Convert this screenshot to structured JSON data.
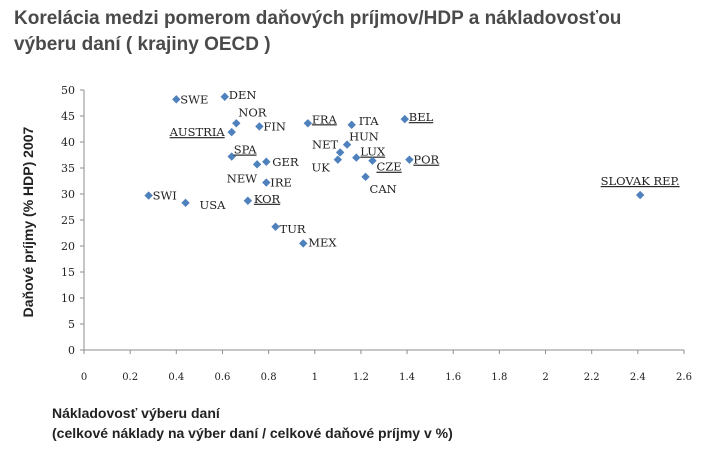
{
  "title_line1": "Korelácia medzi pomerom daňových príjmov/HDP a nákladovosťou",
  "title_line2": "výberu daní ( krajiny OECD )",
  "chart_data": {
    "type": "scatter",
    "xlabel_line1": "Nákladovosť výberu daní",
    "xlabel_line2": "(celkové náklady na výber daní / celkové daňové príjmy v %)",
    "ylabel": "Daňové príjmy (% HDP) 2007",
    "xlim": [
      0,
      2.6
    ],
    "ylim": [
      0,
      50
    ],
    "x_ticks": [
      "0",
      "0.2",
      "0.4",
      "0.6",
      "0.8",
      "1",
      "1.2",
      "1.4",
      "1.6",
      "1.8",
      "2",
      "2.2",
      "2.4",
      "2.6"
    ],
    "y_ticks": [
      "0",
      "5",
      "10",
      "15",
      "20",
      "25",
      "30",
      "35",
      "40",
      "45",
      "50"
    ],
    "grid": false,
    "legend": "none",
    "marker_color": "#4f81bd",
    "points": [
      {
        "label": "SWE",
        "x": 0.4,
        "y": 48.2
      },
      {
        "label": "DEN",
        "x": 0.61,
        "y": 48.7
      },
      {
        "label": "NOR",
        "x": 0.66,
        "y": 43.6
      },
      {
        "label": "AUSTRIA",
        "x": 0.64,
        "y": 41.9
      },
      {
        "label": "FIN",
        "x": 0.76,
        "y": 43.0
      },
      {
        "label": "FRA",
        "x": 0.97,
        "y": 43.6
      },
      {
        "label": "ITA",
        "x": 1.16,
        "y": 43.3
      },
      {
        "label": "BEL",
        "x": 1.39,
        "y": 44.4
      },
      {
        "label": "HUN",
        "x": 1.14,
        "y": 39.5
      },
      {
        "label": "NET",
        "x": 1.11,
        "y": 38.0
      },
      {
        "label": "LUX",
        "x": 1.18,
        "y": 37.0
      },
      {
        "label": "UK",
        "x": 1.1,
        "y": 36.6
      },
      {
        "label": "CZE",
        "x": 1.25,
        "y": 36.4
      },
      {
        "label": "POR",
        "x": 1.41,
        "y": 36.6
      },
      {
        "label": "CAN",
        "x": 1.22,
        "y": 33.3
      },
      {
        "label": "SPA",
        "x": 0.64,
        "y": 37.2
      },
      {
        "label": "GER",
        "x": 0.79,
        "y": 36.2
      },
      {
        "label": "NEW",
        "x": 0.75,
        "y": 35.7
      },
      {
        "label": "IRE",
        "x": 0.79,
        "y": 32.2
      },
      {
        "label": "SWI",
        "x": 0.28,
        "y": 29.7
      },
      {
        "label": "USA",
        "x": 0.44,
        "y": 28.3
      },
      {
        "label": "KOR",
        "x": 0.71,
        "y": 28.7
      },
      {
        "label": "TUR",
        "x": 0.83,
        "y": 23.7
      },
      {
        "label": "MEX",
        "x": 0.95,
        "y": 20.5
      },
      {
        "label": "SLOVAK REP.",
        "x": 2.41,
        "y": 29.8
      }
    ]
  }
}
